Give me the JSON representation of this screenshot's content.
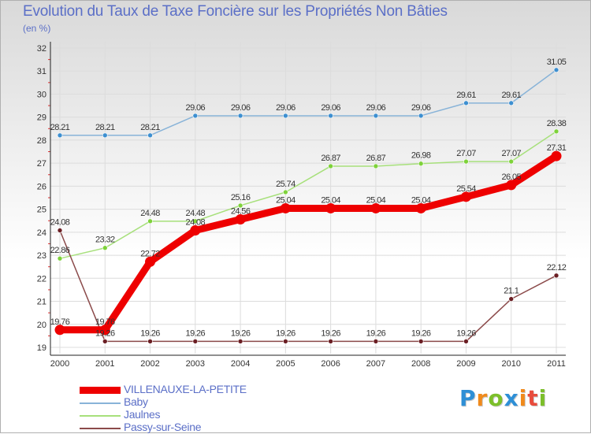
{
  "title": "Evolution du Taux de Taxe Foncière sur les Propriétés Non Bâties",
  "unit": "(en %)",
  "logo": {
    "letters": [
      "P",
      "r",
      "o",
      "x",
      "i",
      "t",
      "i"
    ],
    "colors": [
      "#2e8fd6",
      "#f08a1c",
      "#7cbf2a",
      "#2e8fd6",
      "#f08a1c",
      "#e84c3d",
      "#7cbf2a"
    ]
  },
  "chart_data": {
    "type": "line",
    "title": "Evolution du Taux de Taxe Foncière sur les Propriétés Non Bâties",
    "ylabel": "(en %)",
    "xlabel": "",
    "x": [
      "2000",
      "2001",
      "2002",
      "2003",
      "2004",
      "2005",
      "2006",
      "2007",
      "2008",
      "2009",
      "2010",
      "2011"
    ],
    "ylim": [
      19,
      32
    ],
    "yticks": [
      "19",
      "20",
      "21",
      "22",
      "23",
      "24",
      "25",
      "26",
      "27",
      "28",
      "29",
      "30",
      "31",
      "32"
    ],
    "grid": true,
    "legend_position": "bottom-left",
    "series": [
      {
        "name": "VILLENAUXE-LA-PETITE",
        "color": "#ee0000",
        "marker_color": "#ee0000",
        "bold": true,
        "values": [
          19.76,
          19.76,
          22.72,
          24.08,
          24.56,
          25.04,
          25.04,
          25.04,
          25.04,
          25.54,
          26.05,
          27.31
        ],
        "labels": [
          "19.76",
          "19.76",
          "22.72",
          "24.08",
          "24.56",
          "25.04",
          "25.04",
          "25.04",
          "25.04",
          "25.54",
          "26.05",
          "27.31"
        ]
      },
      {
        "name": "Baby",
        "color": "#88b3d8",
        "marker_color": "#3d8fd0",
        "bold": false,
        "values": [
          28.21,
          28.21,
          28.21,
          29.06,
          29.06,
          29.06,
          29.06,
          29.06,
          29.06,
          29.61,
          29.61,
          31.05
        ],
        "labels": [
          "28.21",
          "28.21",
          "28.21",
          "29.06",
          "29.06",
          "29.06",
          "29.06",
          "29.06",
          "29.06",
          "29.61",
          "29.61",
          "31.05"
        ]
      },
      {
        "name": "Jaulnes",
        "color": "#a7e07b",
        "marker_color": "#7ed23a",
        "bold": false,
        "values": [
          22.86,
          23.32,
          24.48,
          24.48,
          25.16,
          25.74,
          26.87,
          26.87,
          26.98,
          27.07,
          27.07,
          28.38
        ],
        "labels": [
          "22.86",
          "23.32",
          "24.48",
          "24.48",
          "25.16",
          "25.74",
          "26.87",
          "26.87",
          "26.98",
          "27.07",
          "27.07",
          "28.38"
        ]
      },
      {
        "name": "Passy-sur-Seine",
        "color": "#8b4a4a",
        "marker_color": "#6b1f24",
        "bold": false,
        "values": [
          24.08,
          19.26,
          19.26,
          19.26,
          19.26,
          19.26,
          19.26,
          19.26,
          19.26,
          19.26,
          21.1,
          22.12
        ],
        "labels": [
          "24.08",
          "19.26",
          "19.26",
          "19.26",
          "19.26",
          "19.26",
          "19.26",
          "19.26",
          "19.26",
          "19.26",
          "21.1",
          "22.12"
        ]
      }
    ]
  }
}
